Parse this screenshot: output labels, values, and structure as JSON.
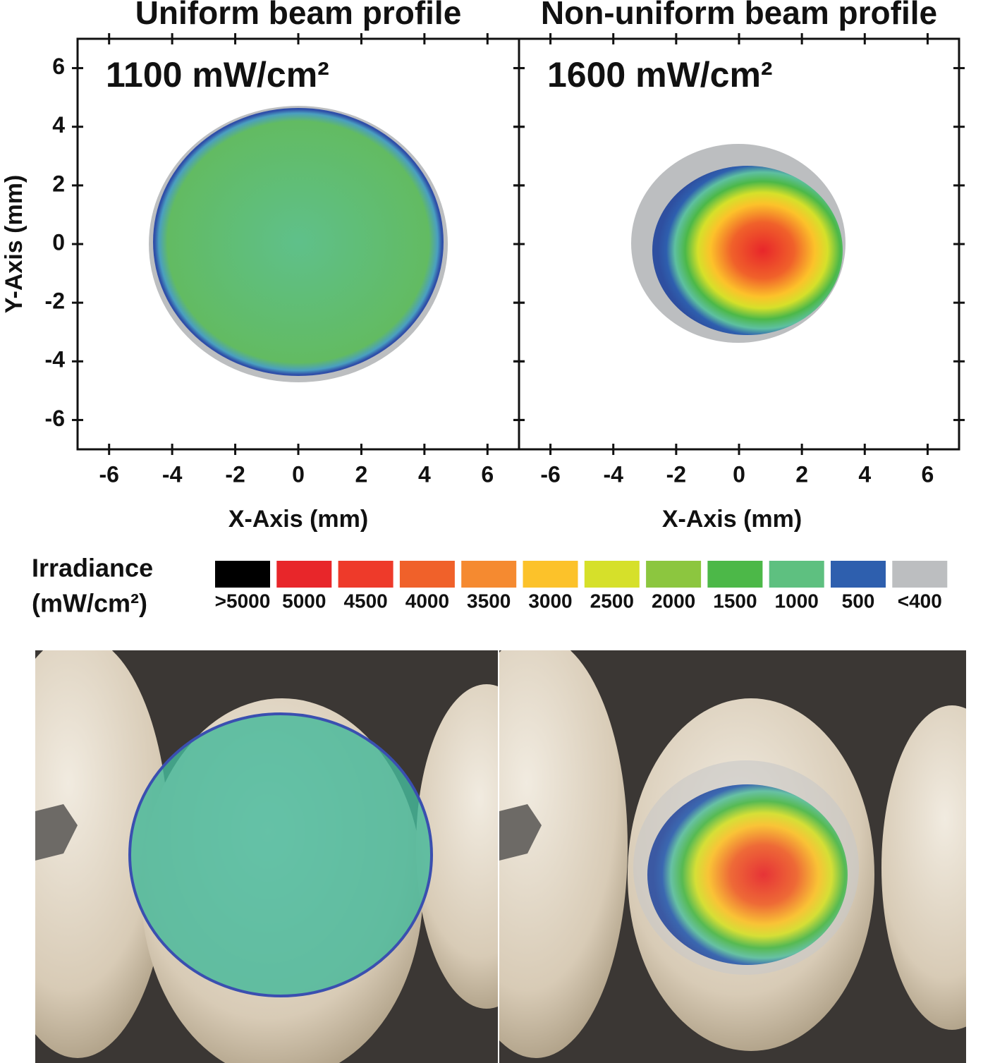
{
  "chart_data": [
    {
      "type": "beam-profile",
      "title": "Uniform beam profile",
      "annotation": "1100 mW/cm²",
      "xlabel": "X-Axis (mm)",
      "ylabel": "Y-Axis (mm)",
      "xlim": [
        -7,
        7
      ],
      "ylim": [
        -7,
        7
      ],
      "xticks": [
        -6,
        -4,
        -2,
        0,
        2,
        4,
        6
      ],
      "yticks": [
        -6,
        -4,
        -2,
        0,
        2,
        4,
        6
      ]
    },
    {
      "type": "beam-profile",
      "title": "Non-uniform beam profile",
      "annotation": "1600 mW/cm²",
      "xlabel": "X-Axis (mm)",
      "xlim": [
        -7,
        7
      ],
      "ylim": [
        -7,
        7
      ],
      "xticks": [
        -6,
        -4,
        -2,
        0,
        2,
        4,
        6
      ],
      "yticks": [
        -6,
        -4,
        -2,
        0,
        2,
        4,
        6
      ]
    }
  ],
  "legend": {
    "title": "Irradiance",
    "unit": "(mW/cm²)",
    "entries": [
      {
        "label": ">5000",
        "color": "#000000"
      },
      {
        "label": "5000",
        "color": "#e8262a"
      },
      {
        "label": "4500",
        "color": "#ee3a2a"
      },
      {
        "label": "4000",
        "color": "#f0612a"
      },
      {
        "label": "3500",
        "color": "#f58a30"
      },
      {
        "label": "3000",
        "color": "#fcc22a"
      },
      {
        "label": "2500",
        "color": "#d6e02a"
      },
      {
        "label": "2000",
        "color": "#8cc63f"
      },
      {
        "label": "1500",
        "color": "#4cb848"
      },
      {
        "label": "1000",
        "color": "#5ec080"
      },
      {
        "label": "500",
        "color": "#2e5fae"
      },
      {
        "label": "<400",
        "color": "#bcbec0"
      }
    ]
  }
}
